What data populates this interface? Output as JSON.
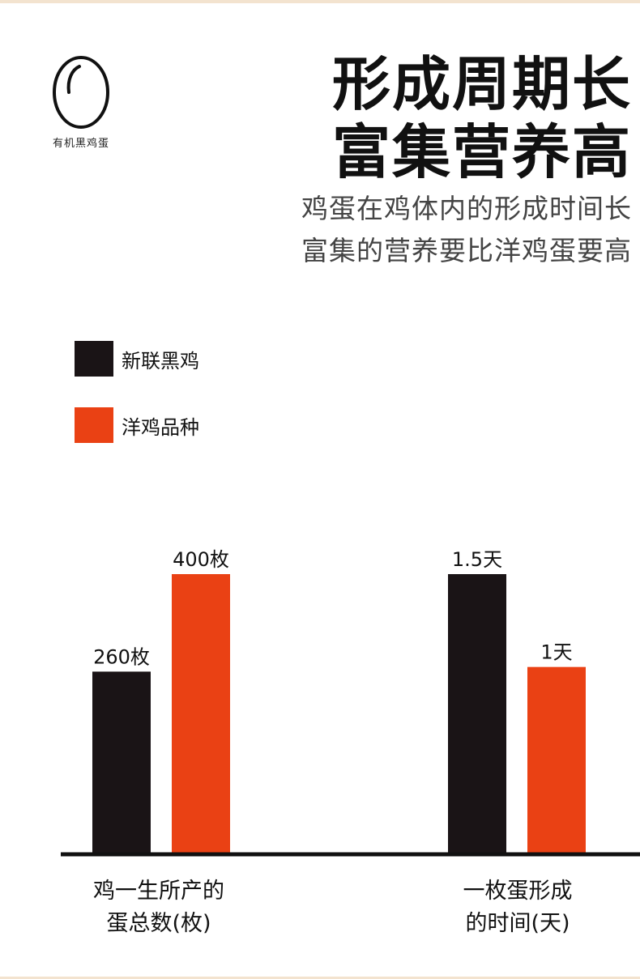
{
  "brand": {
    "logo_text": "有机黑鸡蛋",
    "icon": "egg-icon"
  },
  "headline": {
    "line1": "形成周期长",
    "line2": "富集营养高"
  },
  "subhead": {
    "line1": "鸡蛋在鸡体内的形成时间长",
    "line2": "富集的营养要比洋鸡蛋要高"
  },
  "colors": {
    "black": "#1a1416",
    "orange": "#ea4114",
    "axis": "#111111"
  },
  "chart_data": {
    "type": "bar",
    "legend": {
      "position": "top-left"
    },
    "series": [
      {
        "name": "新联黑鸡",
        "color": "#1a1416",
        "values": [
          260,
          1.5
        ],
        "labels": [
          "260枚",
          "1.5天"
        ]
      },
      {
        "name": "洋鸡品种",
        "color": "#ea4114",
        "values": [
          400,
          1
        ],
        "labels": [
          "400枚",
          "1天"
        ]
      }
    ],
    "categories": [
      {
        "line1": "鸡一生所产的",
        "line2": "蛋总数(枚)",
        "ymax": 400
      },
      {
        "line1": "一枚蛋形成",
        "line2": "的时间(天)",
        "ymax": 1.5
      }
    ],
    "grid": false
  }
}
